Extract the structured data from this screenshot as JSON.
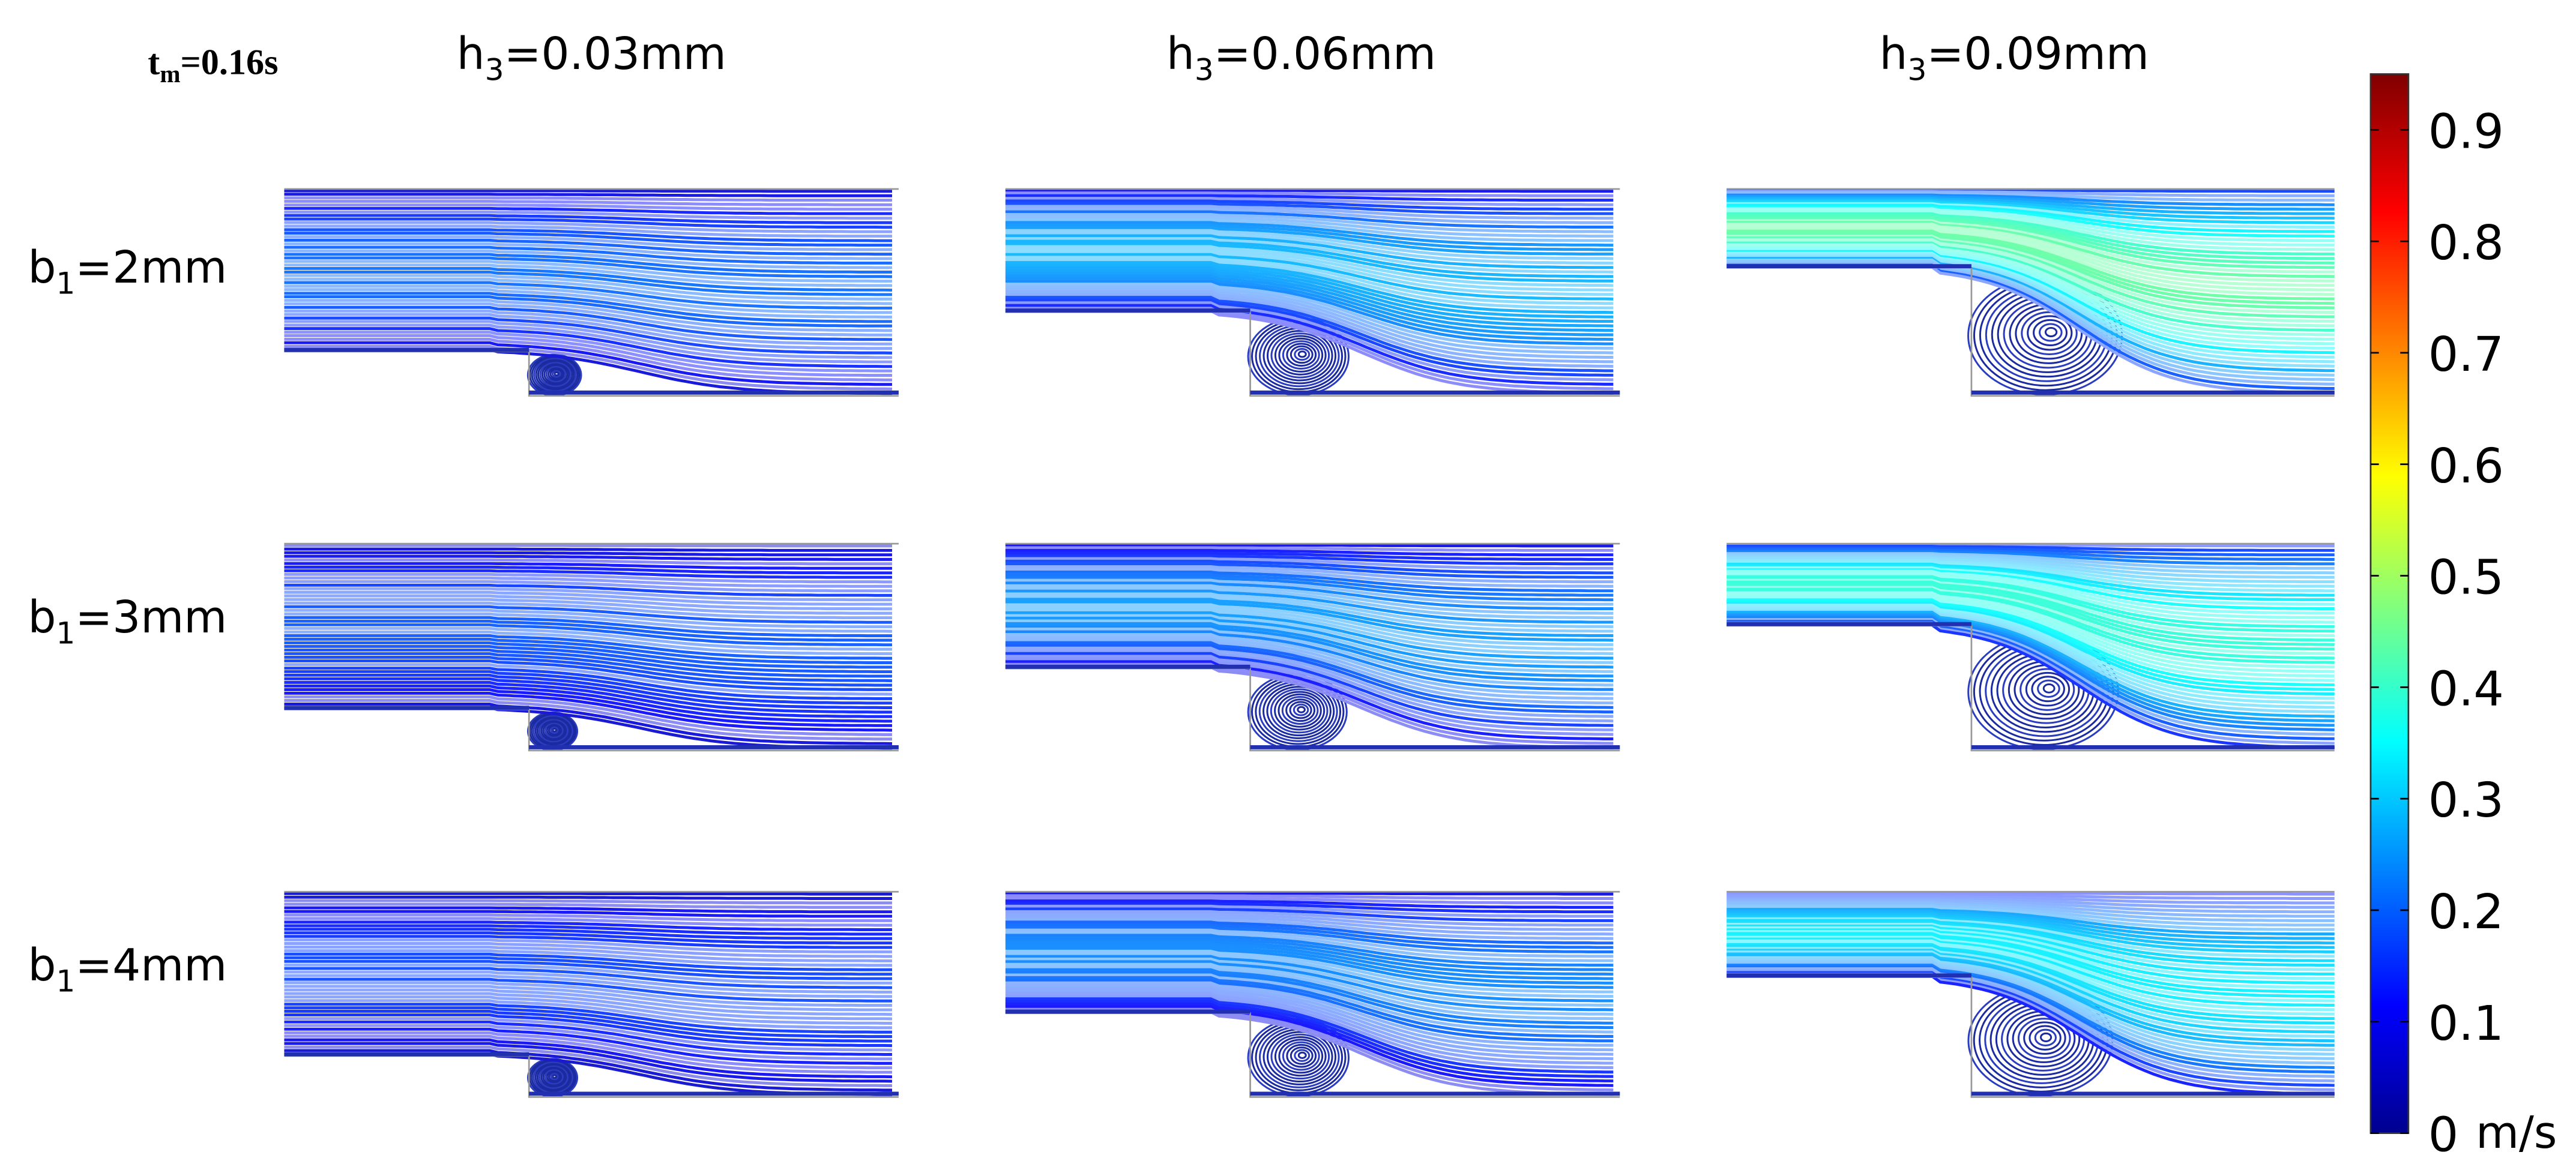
{
  "header": {
    "time": {
      "base": "t",
      "sub": "m",
      "rest": "=0.16s"
    }
  },
  "columns": [
    {
      "base": "h",
      "sub": "3",
      "rest": "=0.03mm"
    },
    {
      "base": "h",
      "sub": "3",
      "rest": "=0.06mm"
    },
    {
      "base": "h",
      "sub": "3",
      "rest": "=0.09mm"
    }
  ],
  "rows": [
    {
      "base": "b",
      "sub": "1",
      "rest": "=2mm"
    },
    {
      "base": "b",
      "sub": "1",
      "rest": "=3mm"
    },
    {
      "base": "b",
      "sub": "1",
      "rest": "=4mm"
    }
  ],
  "colorbar": {
    "lim": [
      0,
      0.95
    ],
    "ticks": [
      0,
      0.1,
      0.2,
      0.3,
      0.4,
      0.5,
      0.6,
      0.7,
      0.8,
      0.9
    ],
    "unit": "m/s"
  }
}
